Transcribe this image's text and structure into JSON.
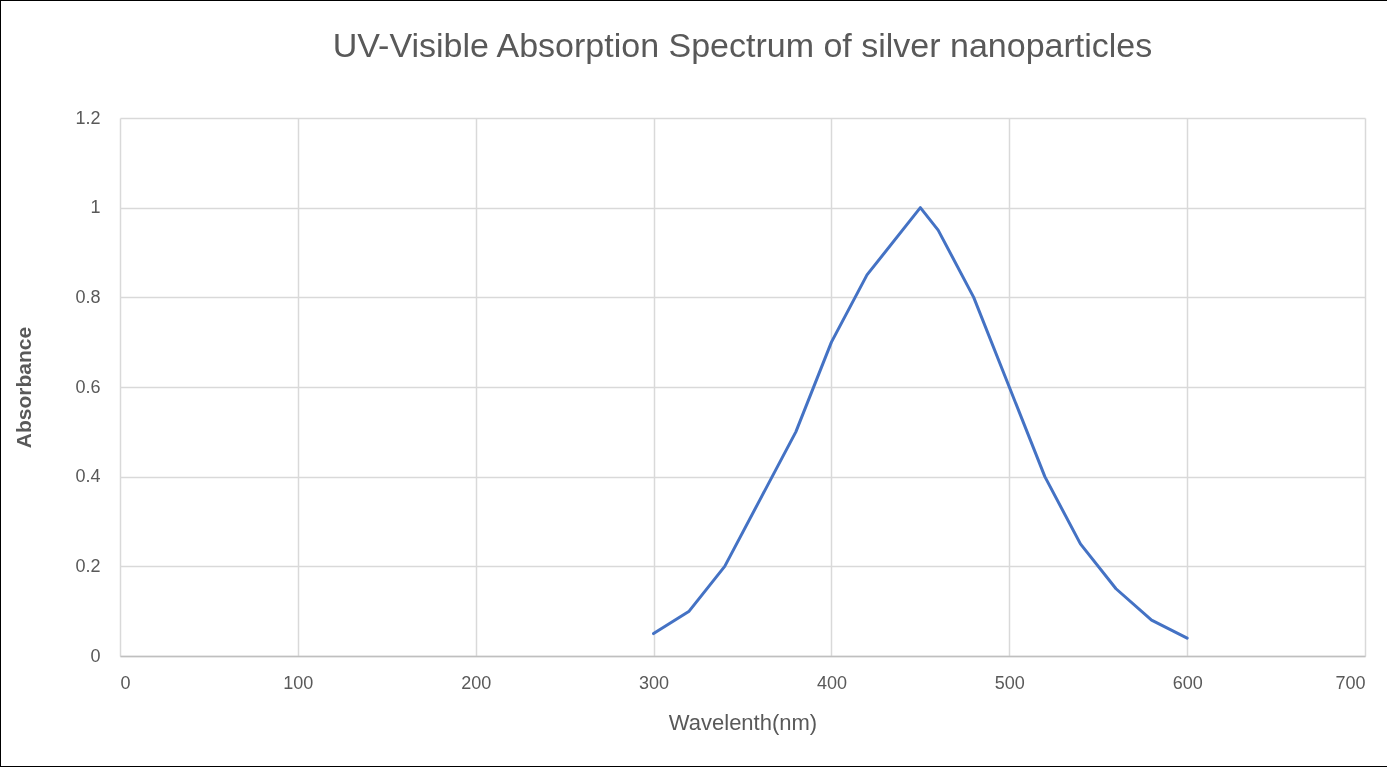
{
  "chart_data": {
    "type": "line",
    "title": "UV-Visible Absorption Spectrum of silver nanoparticles",
    "xlabel": "Wavelenth(nm)",
    "ylabel": "Absorbance",
    "x": [
      300,
      320,
      340,
      360,
      380,
      400,
      420,
      450,
      460,
      480,
      500,
      520,
      540,
      560,
      580,
      600
    ],
    "series": [
      {
        "color": "#4472c4",
        "values": [
          0.05,
          0.1,
          0.2,
          0.35,
          0.5,
          0.7,
          0.85,
          1.0,
          0.95,
          0.8,
          0.6,
          0.4,
          0.25,
          0.15,
          0.08,
          0.04
        ]
      }
    ],
    "xlim": [
      0,
      700
    ],
    "xticks": [
      0,
      100,
      200,
      300,
      400,
      500,
      600,
      700
    ],
    "ylim": [
      0,
      1.2
    ],
    "yticks": [
      0,
      0.2,
      0.4,
      0.6,
      0.8,
      1,
      1.2
    ],
    "grid": true,
    "legend": false,
    "marker": "none",
    "line_style": "solid"
  }
}
